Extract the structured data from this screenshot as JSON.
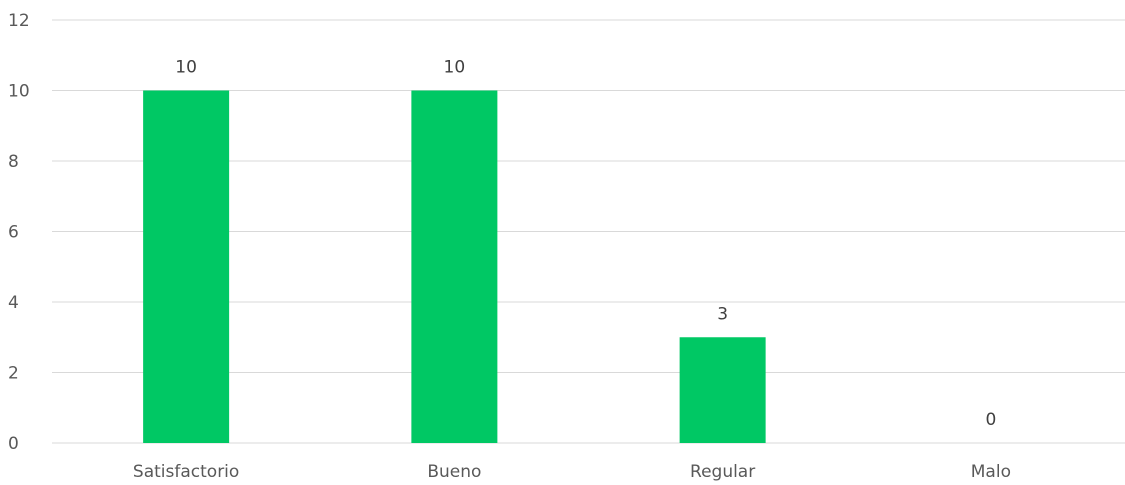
{
  "chart_data": {
    "type": "bar",
    "title": "",
    "xlabel": "",
    "ylabel": "",
    "categories": [
      "Satisfactorio",
      "Bueno",
      "Regular",
      "Malo"
    ],
    "values": [
      10,
      10,
      3,
      0
    ],
    "ylim": [
      0,
      12
    ],
    "yticks": [
      0,
      2,
      4,
      6,
      8,
      10,
      12
    ],
    "grid": true,
    "legend": "none",
    "bar_color": "#00c864",
    "data_labels": true
  }
}
